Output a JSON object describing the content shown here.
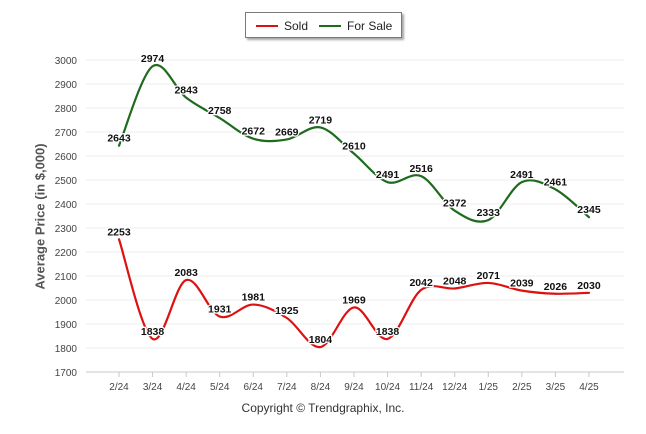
{
  "legend": {
    "sold_label": "Sold",
    "for_sale_label": "For Sale"
  },
  "copyright": "Copyright © Trendgraphix, Inc.",
  "chart_data": {
    "type": "line",
    "title": "",
    "xlabel": "",
    "ylabel": "Average Price (in $,000)",
    "ylim": [
      1700,
      3000
    ],
    "yticks": [
      1700,
      1800,
      1900,
      2000,
      2100,
      2200,
      2300,
      2400,
      2500,
      2600,
      2700,
      2800,
      2900,
      3000
    ],
    "grid": true,
    "legend_position": "top-center",
    "categories": [
      "2/24",
      "3/24",
      "4/24",
      "5/24",
      "6/24",
      "7/24",
      "8/24",
      "9/24",
      "10/24",
      "11/24",
      "12/24",
      "1/25",
      "2/25",
      "3/25",
      "4/25"
    ],
    "series": [
      {
        "name": "Sold",
        "color": "#dd1111",
        "values": [
          2253,
          1838,
          2083,
          1931,
          1981,
          1925,
          1804,
          1969,
          1838,
          2042,
          2048,
          2071,
          2039,
          2026,
          2030
        ]
      },
      {
        "name": "For Sale",
        "color": "#1e6b1e",
        "values": [
          2643,
          2974,
          2843,
          2758,
          2672,
          2669,
          2719,
          2610,
          2491,
          2516,
          2372,
          2333,
          2491,
          2461,
          2345
        ]
      }
    ]
  }
}
